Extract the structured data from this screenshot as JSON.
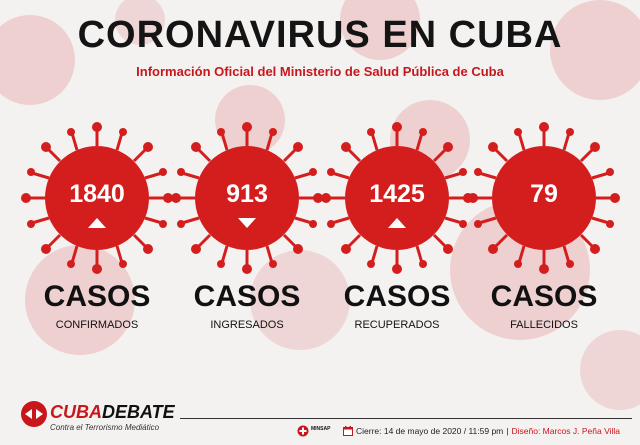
{
  "header": {
    "title": "CORONAVIRUS EN CUBA",
    "subtitle": "Información Oficial del Ministerio de Salud Pública de Cuba"
  },
  "stats": [
    {
      "value": "1840",
      "casos": "CASOS",
      "label": "CONFIRMADOS",
      "trend": "up"
    },
    {
      "value": "913",
      "casos": "CASOS",
      "label": "INGRESADOS",
      "trend": "down"
    },
    {
      "value": "1425",
      "casos": "CASOS",
      "label": "RECUPERADOS",
      "trend": "up"
    },
    {
      "value": "79",
      "casos": "CASOS",
      "label": "FALLECIDOS",
      "trend": "none"
    }
  ],
  "footer": {
    "brand_cuba": "CUBA",
    "brand_debate": "DEBATE",
    "tagline": "Contra el Terrorismo Mediático",
    "minsap": "MINSAP",
    "date": "Cierre: 14 de mayo de 2020 / 11:59 pm",
    "separator": "|",
    "design_credit": "Diseño: Marcos J. Peña Villa"
  },
  "colors": {
    "accent": "#c8161d",
    "virus": "#d41e1e",
    "text": "#111111",
    "background": "#f4f2f1"
  }
}
